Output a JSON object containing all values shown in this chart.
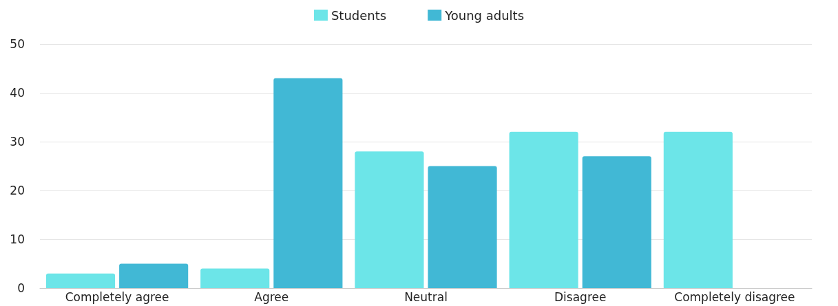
{
  "chart_data": {
    "type": "bar",
    "categories": [
      "Completely agree",
      "Agree",
      "Neutral",
      "Disagree",
      "Completely disagree"
    ],
    "series": [
      {
        "name": "Students",
        "color": "#6ce5e8",
        "values": [
          3,
          4,
          28,
          32,
          32
        ]
      },
      {
        "name": "Young adults",
        "color": "#41b8d5",
        "values": [
          5,
          43,
          25,
          27,
          0
        ]
      }
    ],
    "ylim": [
      0,
      50
    ],
    "yticks": [
      0,
      10,
      20,
      30,
      40,
      50
    ],
    "grid": "y",
    "legend": "top"
  }
}
